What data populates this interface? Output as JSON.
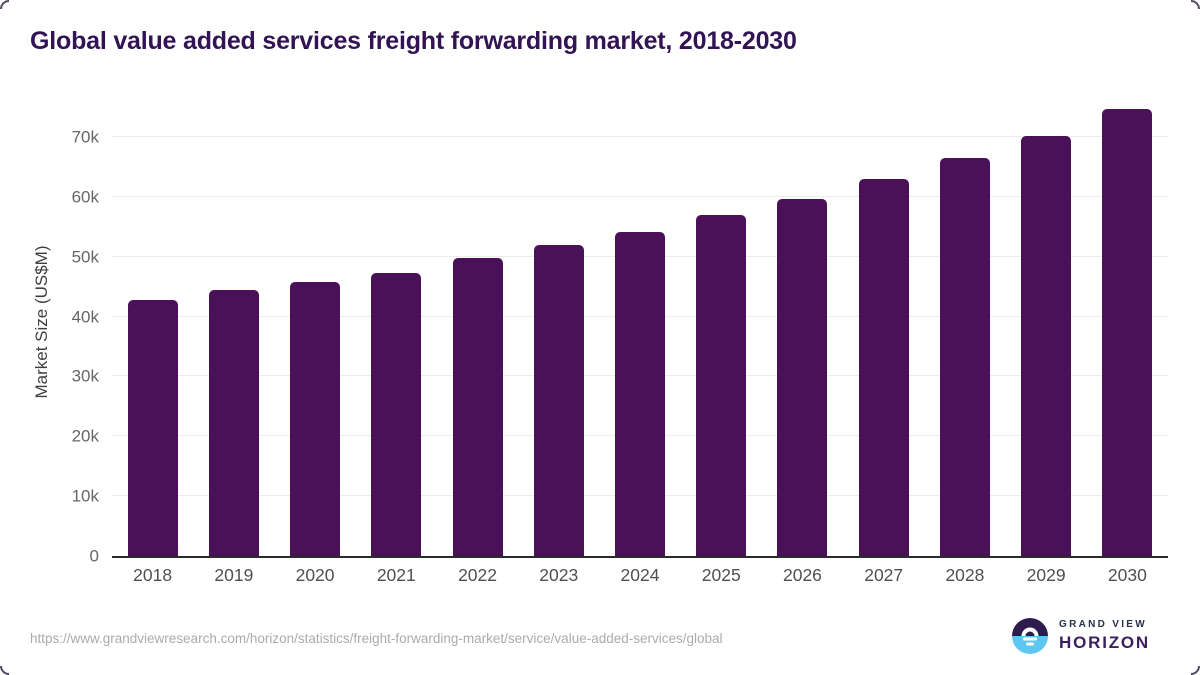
{
  "page": {
    "title": "Global value added services freight forwarding market, 2018-2030"
  },
  "chart_data": {
    "type": "bar",
    "title": "Global value added services freight forwarding market, 2018-2030",
    "xlabel": "",
    "ylabel": "Market Size (US$M)",
    "categories": [
      "2018",
      "2019",
      "2020",
      "2021",
      "2022",
      "2023",
      "2024",
      "2025",
      "2026",
      "2027",
      "2028",
      "2029",
      "2030"
    ],
    "values": [
      42700,
      44400,
      45700,
      47200,
      49700,
      51900,
      54200,
      56900,
      59700,
      63000,
      66400,
      70200,
      74600
    ],
    "unit": "US$M",
    "ylim": [
      0,
      76500
    ],
    "yticks": [
      {
        "value": 0,
        "label": "0"
      },
      {
        "value": 10000,
        "label": "10k"
      },
      {
        "value": 20000,
        "label": "20k"
      },
      {
        "value": 30000,
        "label": "30k"
      },
      {
        "value": 40000,
        "label": "40k"
      },
      {
        "value": 50000,
        "label": "50k"
      },
      {
        "value": 60000,
        "label": "60k"
      },
      {
        "value": 70000,
        "label": "70k"
      }
    ],
    "grid": true,
    "legend": false,
    "bar_color": "#4a1158"
  },
  "footer": {
    "source_url": "https://www.grandviewresearch.com/horizon/statistics/freight-forwarding-market/service/value-added-services/global",
    "logo": {
      "line1": "GRAND VIEW",
      "line2": "HORIZON"
    }
  },
  "colors": {
    "title_text": "#321353",
    "bar": "#4a1158",
    "axis_line": "#2b2b2b",
    "gridline": "#ececee",
    "tick_text": "#666666",
    "axis_title_text": "#3f3f3f",
    "x_label_text": "#4f4f4f",
    "url_text": "#ababab",
    "logo_dark_half": "#2e1c4e",
    "logo_blue_half": "#5ec6f2",
    "logo_navy_text": "#273149",
    "logo_purple_text": "#3b1f5e"
  }
}
